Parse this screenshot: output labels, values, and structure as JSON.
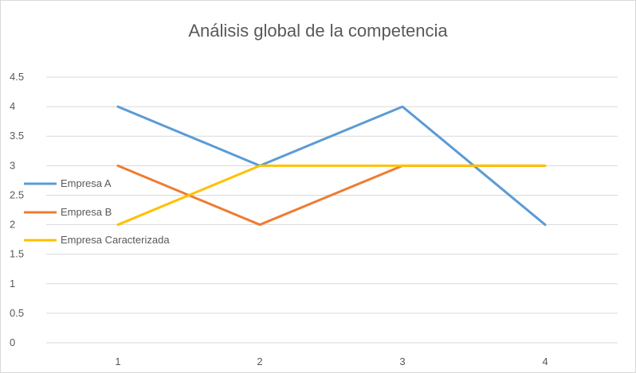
{
  "chart_data": {
    "type": "line",
    "title": "Análisis global de la competencia",
    "xlabel": "",
    "ylabel": "",
    "categories": [
      "1",
      "2",
      "3",
      "4"
    ],
    "ylim": [
      0,
      4.5
    ],
    "y_ticks": [
      "0",
      "0.5",
      "1",
      "1.5",
      "2",
      "2.5",
      "3",
      "3.5",
      "4",
      "4.5"
    ],
    "grid": true,
    "legend_position": "left",
    "series": [
      {
        "name": "Empresa A",
        "color": "#5b9bd5",
        "values": [
          4,
          3,
          4,
          2
        ]
      },
      {
        "name": "Empresa B",
        "color": "#ed7d31",
        "values": [
          3,
          2,
          3,
          3
        ]
      },
      {
        "name": "Empresa Caracterizada",
        "color": "#ffc000",
        "values": [
          2,
          3,
          3,
          3
        ]
      }
    ]
  }
}
